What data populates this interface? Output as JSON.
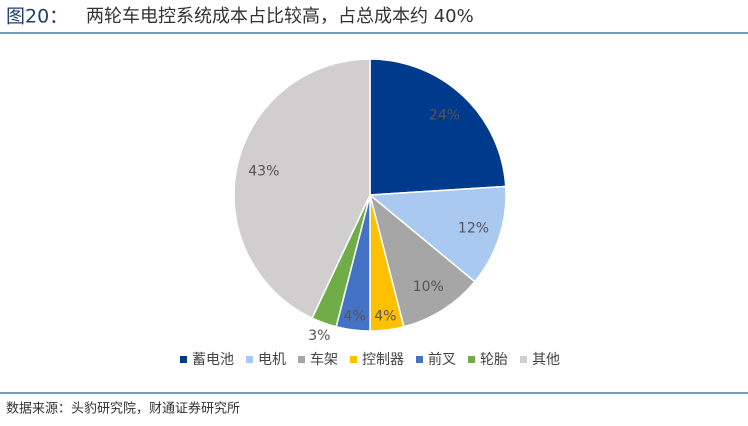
{
  "header": {
    "label": "图20：",
    "title": "两轮车电控系统成本占比较高，占总成本约 40%"
  },
  "chart_data": {
    "type": "pie",
    "categories": [
      "蓄电池",
      "电机",
      "车架",
      "控制器",
      "前叉",
      "轮胎",
      "其他"
    ],
    "values": [
      24,
      12,
      10,
      4,
      4,
      3,
      43
    ],
    "value_labels": [
      "24%",
      "12%",
      "10%",
      "4%",
      "4%",
      "3%",
      "43%"
    ],
    "colors": [
      "#003a8c",
      "#a9c9f0",
      "#a6a6a6",
      "#ffc000",
      "#4472c4",
      "#70ad47",
      "#d0cece"
    ],
    "legend": "bottom"
  },
  "footer": {
    "source": "数据来源：头豹研究院，财通证券研究所"
  }
}
